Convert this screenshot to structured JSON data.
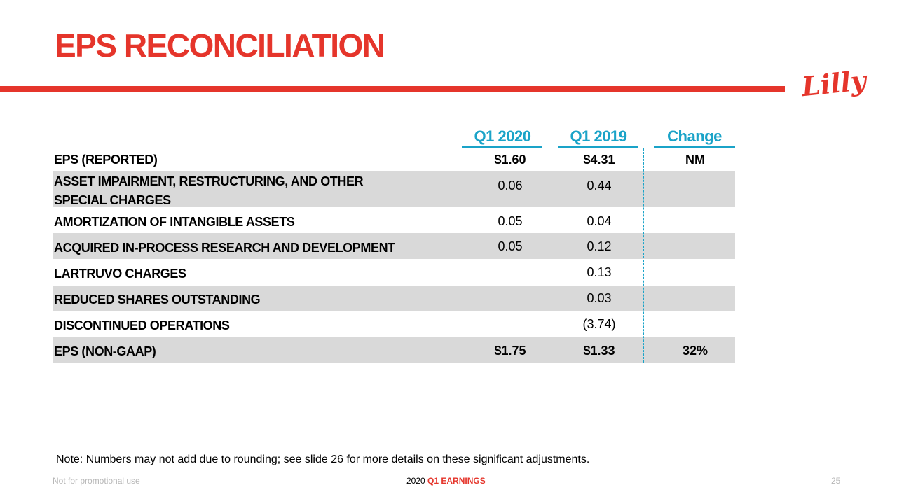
{
  "slide": {
    "title": "EPS RECONCILIATION",
    "brand_color": "#e5352b",
    "accent_color": "#1aa3c8",
    "logo_text": "Lilly"
  },
  "table": {
    "headers": [
      "Q1 2020",
      "Q1 2019",
      "Change"
    ],
    "rows": [
      {
        "label": "EPS (REPORTED)",
        "q1_2020": "$1.60",
        "q1_2019": "$4.31",
        "change": "NM"
      },
      {
        "label_line1": "ASSET IMPAIRMENT, RESTRUCTURING, AND OTHER",
        "label_line2": "SPECIAL CHARGES",
        "q1_2020": "0.06",
        "q1_2019": "0.44",
        "change": ""
      },
      {
        "label": "AMORTIZATION OF INTANGIBLE ASSETS",
        "q1_2020": "0.05",
        "q1_2019": "0.04",
        "change": ""
      },
      {
        "label": "ACQUIRED IN-PROCESS RESEARCH AND DEVELOPMENT",
        "q1_2020": "0.05",
        "q1_2019": "0.12",
        "change": ""
      },
      {
        "label": "LARTRUVO CHARGES",
        "q1_2020": "",
        "q1_2019": "0.13",
        "change": ""
      },
      {
        "label": "REDUCED SHARES OUTSTANDING",
        "q1_2020": "",
        "q1_2019": "0.03",
        "change": ""
      },
      {
        "label": "DISCONTINUED OPERATIONS",
        "q1_2020": "",
        "q1_2019": "(3.74)",
        "change": ""
      },
      {
        "label": "EPS (NON-GAAP)",
        "q1_2020": "$1.75",
        "q1_2019": "$1.33",
        "change": "32%"
      }
    ]
  },
  "note": "Note:  Numbers may not add due to rounding; see slide 26 for more details on these significant adjustments.",
  "footer": {
    "left": "Not for promotional use",
    "year": "2020",
    "event": "Q1 EARNINGS",
    "page": "25"
  }
}
